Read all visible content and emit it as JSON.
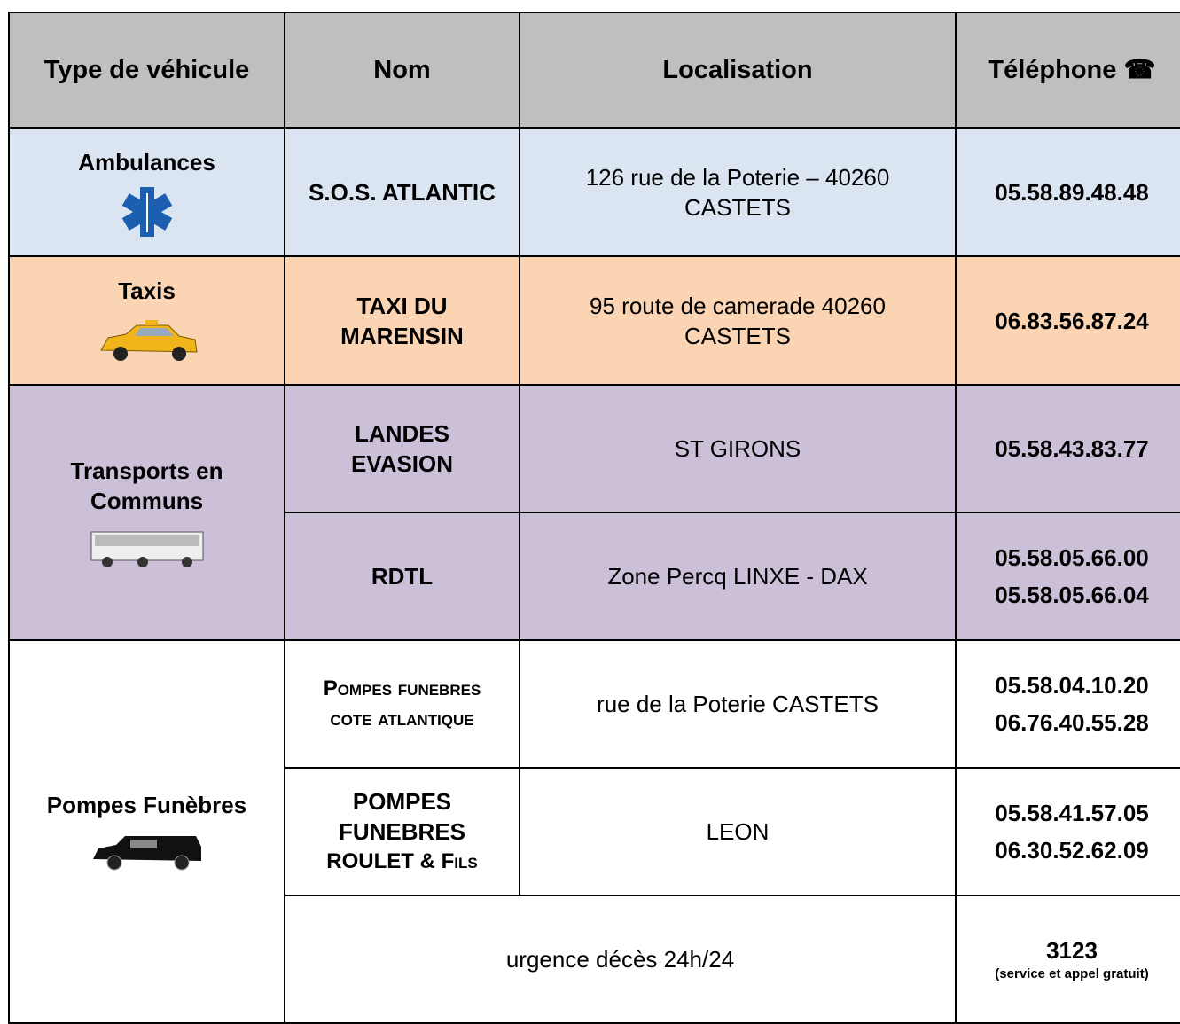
{
  "header": {
    "type": "Type de véhicule",
    "name": "Nom",
    "location": "Localisation",
    "phone": "Téléphone ☎"
  },
  "groups": [
    {
      "type": "Ambulances",
      "rows": [
        {
          "name": "S.O.S. ATLANTIC",
          "location": [
            "126 rue de la Poterie – 40260",
            "CASTETS"
          ],
          "phones": [
            "05.58.89.48.48"
          ]
        }
      ]
    },
    {
      "type": "Taxis",
      "rows": [
        {
          "name": [
            "TAXI DU",
            "MARENSIN"
          ],
          "location": [
            "95 route de camerade 40260",
            "CASTETS"
          ],
          "phones": [
            "06.83.56.87.24"
          ]
        }
      ]
    },
    {
      "type": [
        "Transports en",
        "Communs"
      ],
      "rows": [
        {
          "name": [
            "LANDES",
            "EVASION"
          ],
          "location": [
            "ST GIRONS"
          ],
          "phones": [
            "05.58.43.83.77"
          ]
        },
        {
          "name": [
            "RDTL"
          ],
          "location": [
            "Zone Percq LINXE - DAX"
          ],
          "phones": [
            "05.58.05.66.00",
            "05.58.05.66.04"
          ]
        }
      ]
    },
    {
      "type": "Pompes Funèbres",
      "rows": [
        {
          "name": [
            "Pompes funebres",
            "cote atlantique"
          ],
          "location": [
            "rue de la Poterie CASTETS"
          ],
          "phones": [
            "05.58.04.10.20",
            "06.76.40.55.28"
          ]
        },
        {
          "name": [
            "POMPES",
            "FUNEBRES",
            "ROULET & Fils"
          ],
          "location": [
            "LEON"
          ],
          "phones": [
            "05.58.41.57.05",
            "06.30.52.62.09"
          ]
        }
      ],
      "urgent": {
        "label": "urgence décès 24h/24",
        "number": "3123",
        "note": "(service et appel gratuit)"
      }
    }
  ]
}
